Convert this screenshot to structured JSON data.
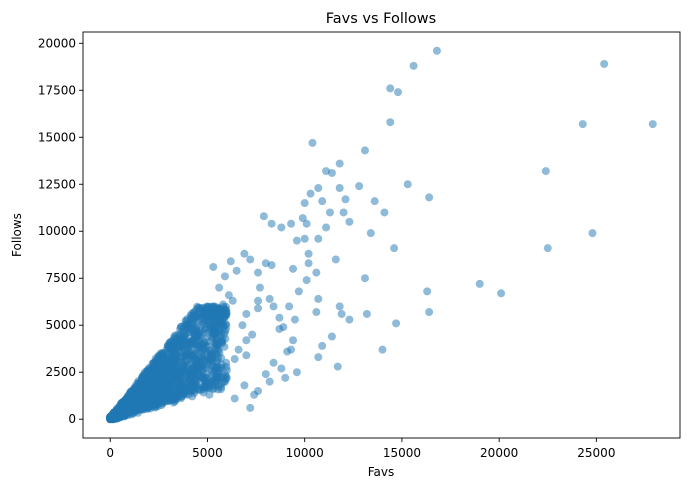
{
  "chart_data": {
    "type": "scatter",
    "title": "Favs vs Follows",
    "xlabel": "Favs",
    "ylabel": "Follows",
    "xlim": [
      -1400,
      29300
    ],
    "ylim": [
      -1000,
      20600
    ],
    "xticks": [
      0,
      5000,
      10000,
      15000,
      20000,
      25000
    ],
    "xtick_labels": [
      "0",
      "5000",
      "10000",
      "15000",
      "20000",
      "25000"
    ],
    "yticks": [
      0,
      2500,
      5000,
      7500,
      10000,
      12500,
      15000,
      17500,
      20000
    ],
    "ytick_labels": [
      "0",
      "2500",
      "5000",
      "7500",
      "10000",
      "12500",
      "15000",
      "17500",
      "20000"
    ],
    "grid": false,
    "marker_color": "#1f77b4",
    "marker_alpha": 0.5,
    "series": [
      {
        "name": "Favs vs Follows",
        "points": [
          [
            16800,
            19600
          ],
          [
            15600,
            18800
          ],
          [
            25400,
            18900
          ],
          [
            14400,
            17600
          ],
          [
            14800,
            17400
          ],
          [
            24300,
            15700
          ],
          [
            27900,
            15700
          ],
          [
            14400,
            15800
          ],
          [
            10400,
            14700
          ],
          [
            13100,
            14300
          ],
          [
            11800,
            13600
          ],
          [
            11100,
            13200
          ],
          [
            11400,
            13100
          ],
          [
            22400,
            13200
          ],
          [
            15300,
            12500
          ],
          [
            16400,
            11800
          ],
          [
            12800,
            12400
          ],
          [
            10700,
            12300
          ],
          [
            11800,
            12300
          ],
          [
            12100,
            11700
          ],
          [
            13600,
            11600
          ],
          [
            10300,
            12000
          ],
          [
            10000,
            11500
          ],
          [
            10900,
            11600
          ],
          [
            11300,
            11000
          ],
          [
            12000,
            11000
          ],
          [
            9900,
            10700
          ],
          [
            10100,
            10400
          ],
          [
            11100,
            10200
          ],
          [
            12300,
            10500
          ],
          [
            8800,
            10200
          ],
          [
            9300,
            10400
          ],
          [
            7900,
            10800
          ],
          [
            8300,
            10400
          ],
          [
            10700,
            9600
          ],
          [
            13400,
            9900
          ],
          [
            14600,
            9100
          ],
          [
            14100,
            11000
          ],
          [
            22500,
            9100
          ],
          [
            24800,
            9900
          ],
          [
            19000,
            7200
          ],
          [
            20100,
            6700
          ],
          [
            16300,
            6800
          ],
          [
            16400,
            5700
          ],
          [
            14700,
            5100
          ],
          [
            14000,
            3700
          ],
          [
            13200,
            5600
          ],
          [
            13100,
            7500
          ],
          [
            12300,
            5300
          ],
          [
            11900,
            5600
          ],
          [
            11800,
            6000
          ],
          [
            11600,
            8500
          ],
          [
            11700,
            2800
          ],
          [
            10900,
            3900
          ],
          [
            10700,
            3300
          ],
          [
            11400,
            4400
          ],
          [
            10600,
            5700
          ],
          [
            10600,
            7800
          ],
          [
            10200,
            8300
          ],
          [
            10000,
            9600
          ],
          [
            9600,
            9500
          ],
          [
            9200,
            6000
          ],
          [
            9500,
            5300
          ],
          [
            8700,
            5400
          ],
          [
            8900,
            4900
          ],
          [
            9400,
            4200
          ],
          [
            8700,
            4800
          ],
          [
            9300,
            3700
          ],
          [
            9100,
            3600
          ],
          [
            8400,
            3000
          ],
          [
            8800,
            2700
          ],
          [
            8000,
            2400
          ],
          [
            8200,
            2000
          ],
          [
            9000,
            2200
          ],
          [
            9600,
            2500
          ],
          [
            7600,
            1500
          ],
          [
            7400,
            1300
          ],
          [
            7200,
            600
          ],
          [
            6400,
            1100
          ],
          [
            6900,
            1800
          ],
          [
            8300,
            8200
          ],
          [
            8000,
            8300
          ],
          [
            7600,
            7800
          ],
          [
            7200,
            8500
          ],
          [
            6900,
            8800
          ],
          [
            6500,
            7900
          ],
          [
            5300,
            8100
          ],
          [
            6200,
            8400
          ],
          [
            5900,
            7600
          ],
          [
            5600,
            7000
          ],
          [
            6100,
            6600
          ],
          [
            6300,
            6300
          ],
          [
            5800,
            6100
          ],
          [
            7700,
            7000
          ],
          [
            7600,
            5900
          ],
          [
            8200,
            6400
          ],
          [
            8400,
            6000
          ],
          [
            7600,
            6300
          ],
          [
            7000,
            5600
          ],
          [
            6800,
            5000
          ],
          [
            7300,
            4500
          ],
          [
            7000,
            4200
          ],
          [
            6600,
            3700
          ],
          [
            6400,
            3200
          ],
          [
            7000,
            3400
          ],
          [
            6000,
            2600
          ],
          [
            5500,
            2200
          ],
          [
            5700,
            1600
          ],
          [
            5100,
            1300
          ],
          [
            4800,
            1700
          ],
          [
            9400,
            8000
          ],
          [
            9700,
            6800
          ],
          [
            10100,
            7400
          ],
          [
            10700,
            6400
          ],
          [
            10200,
            8800
          ]
        ]
      }
    ],
    "dense_region": {
      "description": "very dense cloud of overlapping points",
      "x_range": [
        0,
        6000
      ],
      "y_range": [
        0,
        6000
      ],
      "point_count": 2200
    }
  }
}
